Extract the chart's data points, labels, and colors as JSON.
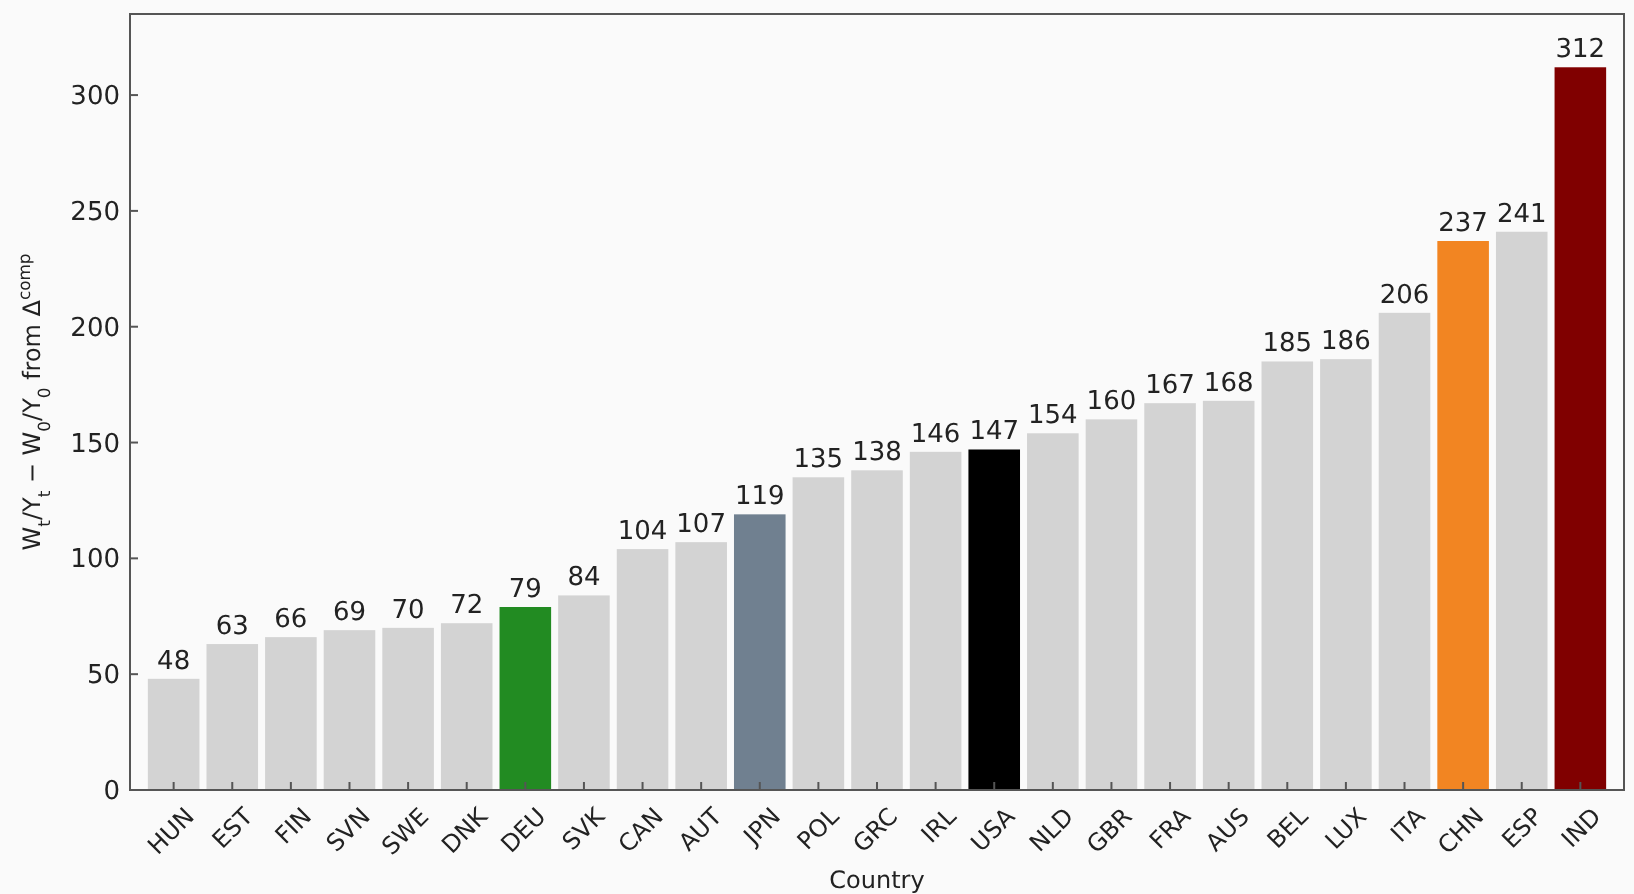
{
  "chart_data": {
    "type": "bar",
    "xlabel": "Country",
    "ylabel": "W$_{t}$/Y$_{t}$ − W$_{0}$/Y$_{0}$ from Δ$^{comp}$",
    "categories": [
      "HUN",
      "EST",
      "FIN",
      "SVN",
      "SWE",
      "DNK",
      "DEU",
      "SVK",
      "CAN",
      "AUT",
      "JPN",
      "POL",
      "GRC",
      "IRL",
      "USA",
      "NLD",
      "GBR",
      "FRA",
      "AUS",
      "BEL",
      "LUX",
      "ITA",
      "CHN",
      "ESP",
      "IND"
    ],
    "values": [
      48,
      63,
      66,
      69,
      70,
      72,
      79,
      84,
      104,
      107,
      119,
      135,
      138,
      146,
      147,
      154,
      160,
      167,
      168,
      185,
      186,
      206,
      237,
      241,
      312
    ],
    "colors": [
      "#d3d3d3",
      "#d3d3d3",
      "#d3d3d3",
      "#d3d3d3",
      "#d3d3d3",
      "#d3d3d3",
      "#228b22",
      "#d3d3d3",
      "#d3d3d3",
      "#d3d3d3",
      "#708090",
      "#d3d3d3",
      "#d3d3d3",
      "#d3d3d3",
      "#000000",
      "#d3d3d3",
      "#d3d3d3",
      "#d3d3d3",
      "#d3d3d3",
      "#d3d3d3",
      "#d3d3d3",
      "#d3d3d3",
      "#f28522",
      "#d3d3d3",
      "#800000"
    ],
    "data_labels": true,
    "ylim": [
      0,
      335
    ],
    "yticks": [
      0,
      50,
      100,
      150,
      200,
      250,
      300
    ],
    "grid": false
  }
}
